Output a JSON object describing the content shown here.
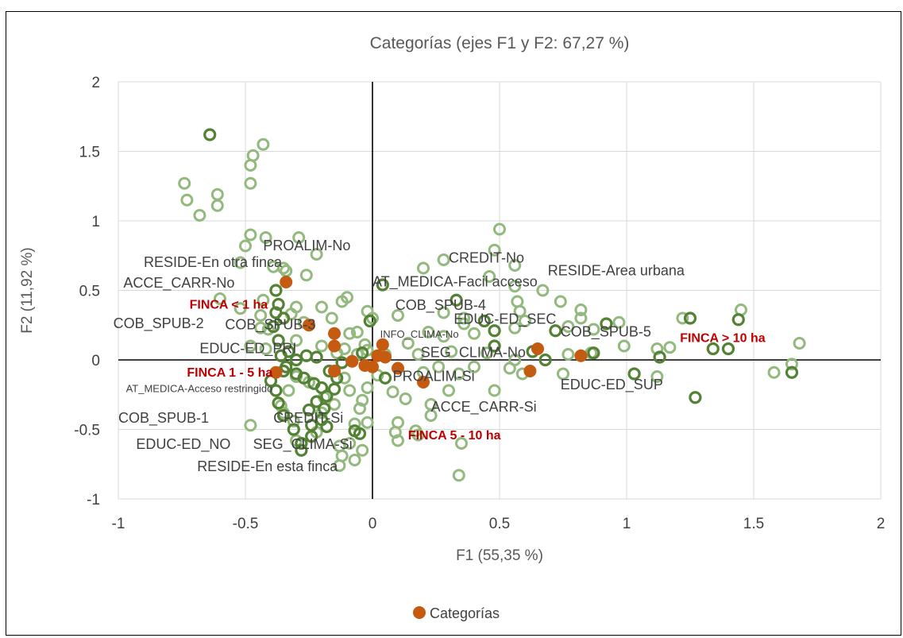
{
  "chart_data": {
    "type": "scatter",
    "title": "Categorías (ejes F1 y F2: 67,27 %)",
    "xlabel": "F1 (55,35 %)",
    "ylabel": "F2 (11,92 %)",
    "xlim": [
      -1,
      2
    ],
    "ylim": [
      -1,
      2
    ],
    "x_ticks": [
      "-1",
      "-0.5",
      "0",
      "0.5",
      "1",
      "1.5",
      "2"
    ],
    "y_ticks": [
      "-1",
      "-0.5",
      "0",
      "0.5",
      "1",
      "1.5",
      "2"
    ],
    "grid": true,
    "legend": {
      "position": "bottom",
      "entries": [
        "Categorías"
      ]
    },
    "colors": {
      "categories": "#c55a11",
      "obs_light": "#93b97f",
      "obs_dark": "#548235",
      "grid": "#d9d9d9",
      "highlight_label": "#c00000"
    },
    "series": [
      {
        "name": "Categorías",
        "points": [
          {
            "x": -0.34,
            "y": 0.56
          },
          {
            "x": -0.25,
            "y": 0.25
          },
          {
            "x": -0.15,
            "y": 0.19
          },
          {
            "x": -0.15,
            "y": 0.1
          },
          {
            "x": -0.08,
            "y": -0.01
          },
          {
            "x": -0.03,
            "y": -0.04
          },
          {
            "x": 0.0,
            "y": -0.05
          },
          {
            "x": 0.02,
            "y": 0.03
          },
          {
            "x": 0.04,
            "y": 0.11
          },
          {
            "x": 0.1,
            "y": -0.06
          },
          {
            "x": 0.2,
            "y": -0.16
          },
          {
            "x": 0.62,
            "y": -0.08
          },
          {
            "x": 0.65,
            "y": 0.08
          },
          {
            "x": 0.82,
            "y": 0.03
          },
          {
            "x": -0.38,
            "y": -0.09
          },
          {
            "x": -0.15,
            "y": -0.08
          },
          {
            "x": 0.05,
            "y": 0.02
          }
        ]
      },
      {
        "name": "",
        "style": "light",
        "points": [
          {
            "x": -0.74,
            "y": 1.27
          },
          {
            "x": -0.73,
            "y": 1.15
          },
          {
            "x": -0.68,
            "y": 1.04
          },
          {
            "x": -0.61,
            "y": 1.19
          },
          {
            "x": -0.61,
            "y": 1.11
          },
          {
            "x": -0.48,
            "y": 1.4
          },
          {
            "x": -0.47,
            "y": 1.47
          },
          {
            "x": -0.43,
            "y": 1.55
          },
          {
            "x": -0.48,
            "y": 1.27
          },
          {
            "x": -0.5,
            "y": 0.82
          },
          {
            "x": -0.48,
            "y": 0.9
          },
          {
            "x": -0.42,
            "y": 0.88
          },
          {
            "x": -0.29,
            "y": 0.88
          },
          {
            "x": -0.22,
            "y": 0.76
          },
          {
            "x": -0.52,
            "y": 0.7
          },
          {
            "x": -0.39,
            "y": 0.67
          },
          {
            "x": -0.35,
            "y": 0.66
          },
          {
            "x": -0.34,
            "y": 0.64
          },
          {
            "x": -0.26,
            "y": 0.61
          },
          {
            "x": -0.6,
            "y": 0.44
          },
          {
            "x": -0.52,
            "y": 0.37
          },
          {
            "x": -0.43,
            "y": 0.43
          },
          {
            "x": -0.3,
            "y": 0.38
          },
          {
            "x": -0.12,
            "y": 0.42
          },
          {
            "x": -0.1,
            "y": 0.45
          },
          {
            "x": -0.2,
            "y": 0.38
          },
          {
            "x": -0.44,
            "y": 0.32
          },
          {
            "x": -0.44,
            "y": 0.23
          },
          {
            "x": -0.41,
            "y": 0.22
          },
          {
            "x": -0.32,
            "y": 0.33
          },
          {
            "x": -0.27,
            "y": 0.27
          },
          {
            "x": -0.16,
            "y": 0.3
          },
          {
            "x": -0.09,
            "y": 0.19
          },
          {
            "x": -0.06,
            "y": 0.2
          },
          {
            "x": -0.03,
            "y": 0.11
          },
          {
            "x": -0.02,
            "y": 0.35
          },
          {
            "x": 0.0,
            "y": 0.3
          },
          {
            "x": -0.48,
            "y": 0.1
          },
          {
            "x": -0.42,
            "y": 0.08
          },
          {
            "x": -0.3,
            "y": 0.14
          },
          {
            "x": -0.2,
            "y": 0.1
          },
          {
            "x": -0.14,
            "y": 0.05
          },
          {
            "x": -0.11,
            "y": 0.08
          },
          {
            "x": -0.06,
            "y": 0.04
          },
          {
            "x": -0.02,
            "y": 0.07
          },
          {
            "x": 0.05,
            "y": 0.04
          },
          {
            "x": 0.14,
            "y": 0.12
          },
          {
            "x": 0.18,
            "y": 0.04
          },
          {
            "x": 0.22,
            "y": 0.2
          },
          {
            "x": 0.28,
            "y": 0.17
          },
          {
            "x": 0.36,
            "y": 0.26
          },
          {
            "x": 0.4,
            "y": 0.19
          },
          {
            "x": 0.1,
            "y": 0.32
          },
          {
            "x": 0.2,
            "y": 0.66
          },
          {
            "x": 0.28,
            "y": 0.72
          },
          {
            "x": 0.48,
            "y": 0.79
          },
          {
            "x": 0.5,
            "y": 0.94
          },
          {
            "x": 0.56,
            "y": 0.68
          },
          {
            "x": 0.46,
            "y": 0.6
          },
          {
            "x": 0.56,
            "y": 0.53
          },
          {
            "x": 0.57,
            "y": 0.42
          },
          {
            "x": 0.58,
            "y": 0.35
          },
          {
            "x": 0.67,
            "y": 0.5
          },
          {
            "x": 0.56,
            "y": 0.23
          },
          {
            "x": 0.6,
            "y": 0.28
          },
          {
            "x": 0.74,
            "y": 0.42
          },
          {
            "x": 0.82,
            "y": 0.36
          },
          {
            "x": 0.82,
            "y": 0.3
          },
          {
            "x": 0.77,
            "y": 0.24
          },
          {
            "x": 0.87,
            "y": 0.22
          },
          {
            "x": 0.97,
            "y": 0.27
          },
          {
            "x": 0.99,
            "y": 0.1
          },
          {
            "x": 0.86,
            "y": 0.05
          },
          {
            "x": 0.77,
            "y": 0.04
          },
          {
            "x": 0.75,
            "y": -0.1
          },
          {
            "x": 0.59,
            "y": -0.1
          },
          {
            "x": 0.56,
            "y": 0.0
          },
          {
            "x": 0.45,
            "y": 0.05
          },
          {
            "x": 0.4,
            "y": -0.05
          },
          {
            "x": 0.34,
            "y": -0.1
          },
          {
            "x": 0.26,
            "y": -0.05
          },
          {
            "x": 0.2,
            "y": -0.09
          },
          {
            "x": 0.3,
            "y": -0.22
          },
          {
            "x": 0.23,
            "y": -0.32
          },
          {
            "x": 0.23,
            "y": -0.4
          },
          {
            "x": 0.1,
            "y": -0.45
          },
          {
            "x": 0.09,
            "y": -0.52
          },
          {
            "x": 0.1,
            "y": -0.58
          },
          {
            "x": 0.17,
            "y": -0.51
          },
          {
            "x": 0.18,
            "y": -0.54
          },
          {
            "x": 0.35,
            "y": -0.6
          },
          {
            "x": 0.34,
            "y": -0.83
          },
          {
            "x": 0.08,
            "y": -0.23
          },
          {
            "x": 0.02,
            "y": -0.11
          },
          {
            "x": -0.02,
            "y": -0.2
          },
          {
            "x": -0.04,
            "y": -0.29
          },
          {
            "x": -0.02,
            "y": -0.45
          },
          {
            "x": -0.07,
            "y": -0.46
          },
          {
            "x": -0.09,
            "y": -0.6
          },
          {
            "x": -0.13,
            "y": -0.62
          },
          {
            "x": -0.12,
            "y": -0.69
          },
          {
            "x": -0.07,
            "y": -0.72
          },
          {
            "x": -0.04,
            "y": -0.65
          },
          {
            "x": -0.13,
            "y": -0.76
          },
          {
            "x": -0.22,
            "y": -0.52
          },
          {
            "x": -0.24,
            "y": -0.55
          },
          {
            "x": -0.3,
            "y": -0.58
          },
          {
            "x": -0.31,
            "y": -0.44
          },
          {
            "x": -0.35,
            "y": -0.38
          },
          {
            "x": -0.36,
            "y": -0.33
          },
          {
            "x": -0.48,
            "y": -0.47
          },
          {
            "x": -0.33,
            "y": -0.22
          },
          {
            "x": -0.3,
            "y": -0.12
          },
          {
            "x": -0.25,
            "y": -0.16
          },
          {
            "x": -0.19,
            "y": -0.27
          },
          {
            "x": -0.15,
            "y": -0.32
          },
          {
            "x": -0.11,
            "y": -0.13
          },
          {
            "x": -0.09,
            "y": -0.22
          },
          {
            "x": -0.05,
            "y": -0.35
          },
          {
            "x": -0.2,
            "y": -0.38
          },
          {
            "x": 1.12,
            "y": 0.08
          },
          {
            "x": 1.17,
            "y": 0.09
          },
          {
            "x": 1.22,
            "y": 0.3
          },
          {
            "x": 1.45,
            "y": 0.36
          },
          {
            "x": 1.58,
            "y": -0.09
          },
          {
            "x": 1.65,
            "y": -0.03
          },
          {
            "x": 1.68,
            "y": 0.12
          },
          {
            "x": 1.12,
            "y": -0.12
          },
          {
            "x": 0.48,
            "y": -0.22
          },
          {
            "x": 0.54,
            "y": -0.06
          },
          {
            "x": 0.31,
            "y": 0.06
          },
          {
            "x": 0.28,
            "y": 0.34
          },
          {
            "x": 0.36,
            "y": 0.3
          },
          {
            "x": 0.13,
            "y": -0.28
          }
        ]
      },
      {
        "name": "",
        "style": "dark",
        "points": [
          {
            "x": -0.64,
            "y": 1.62
          },
          {
            "x": -0.38,
            "y": 0.5
          },
          {
            "x": -0.37,
            "y": 0.4
          },
          {
            "x": -0.38,
            "y": 0.34
          },
          {
            "x": -0.35,
            "y": 0.3
          },
          {
            "x": -0.39,
            "y": 0.24
          },
          {
            "x": -0.37,
            "y": 0.14
          },
          {
            "x": -0.33,
            "y": 0.06
          },
          {
            "x": -0.36,
            "y": 0.03
          },
          {
            "x": -0.3,
            "y": 0.0
          },
          {
            "x": -0.26,
            "y": 0.03
          },
          {
            "x": -0.22,
            "y": 0.02
          },
          {
            "x": -0.34,
            "y": -0.05
          },
          {
            "x": -0.3,
            "y": -0.1
          },
          {
            "x": -0.27,
            "y": -0.13
          },
          {
            "x": -0.23,
            "y": -0.17
          },
          {
            "x": -0.2,
            "y": -0.2
          },
          {
            "x": -0.18,
            "y": -0.26
          },
          {
            "x": -0.15,
            "y": -0.21
          },
          {
            "x": -0.22,
            "y": -0.3
          },
          {
            "x": -0.19,
            "y": -0.35
          },
          {
            "x": -0.2,
            "y": -0.43
          },
          {
            "x": -0.18,
            "y": -0.48
          },
          {
            "x": -0.24,
            "y": -0.47
          },
          {
            "x": -0.25,
            "y": -0.36
          },
          {
            "x": -0.31,
            "y": -0.5
          },
          {
            "x": -0.28,
            "y": -0.6
          },
          {
            "x": -0.28,
            "y": -0.65
          },
          {
            "x": -0.37,
            "y": -0.31
          },
          {
            "x": -0.38,
            "y": -0.22
          },
          {
            "x": -0.4,
            "y": -0.15
          },
          {
            "x": -0.35,
            "y": -0.08
          },
          {
            "x": -0.17,
            "y": -0.08
          },
          {
            "x": -0.12,
            "y": -0.02
          },
          {
            "x": -0.04,
            "y": 0.05
          },
          {
            "x": -0.01,
            "y": 0.28
          },
          {
            "x": 0.04,
            "y": 0.54
          },
          {
            "x": 0.05,
            "y": -0.13
          },
          {
            "x": 0.33,
            "y": 0.43
          },
          {
            "x": 0.44,
            "y": 0.28
          },
          {
            "x": 0.48,
            "y": 0.21
          },
          {
            "x": 0.48,
            "y": 0.1
          },
          {
            "x": 0.63,
            "y": 0.06
          },
          {
            "x": 0.68,
            "y": 0.0
          },
          {
            "x": 0.72,
            "y": 0.21
          },
          {
            "x": 0.92,
            "y": 0.26
          },
          {
            "x": 0.87,
            "y": 0.05
          },
          {
            "x": 1.03,
            "y": -0.1
          },
          {
            "x": 1.13,
            "y": 0.02
          },
          {
            "x": 1.25,
            "y": 0.3
          },
          {
            "x": 1.27,
            "y": -0.27
          },
          {
            "x": 1.34,
            "y": 0.08
          },
          {
            "x": 1.4,
            "y": 0.08
          },
          {
            "x": 1.44,
            "y": 0.29
          },
          {
            "x": 1.65,
            "y": -0.09
          },
          {
            "x": -0.07,
            "y": -0.51
          },
          {
            "x": -0.05,
            "y": -0.53
          },
          {
            "x": -0.35,
            "y": -0.4
          },
          {
            "x": -0.24,
            "y": -0.55
          },
          {
            "x": -0.14,
            "y": -0.13
          }
        ]
      }
    ],
    "point_labels": [
      {
        "text": "PROALIM-No",
        "x": -0.43,
        "y": 0.79,
        "size": "normal"
      },
      {
        "text": "RESIDE-En otra finca",
        "x": -0.9,
        "y": 0.67,
        "size": "normal"
      },
      {
        "text": "ACCE_CARR-No",
        "x": -0.98,
        "y": 0.52,
        "size": "normal"
      },
      {
        "text": "COB_SPUB-2",
        "x": -1.02,
        "y": 0.23,
        "size": "normal"
      },
      {
        "text": "COB_SPUB-3",
        "x": -0.58,
        "y": 0.22,
        "size": "normal"
      },
      {
        "text": "EDUC-ED_PRI",
        "x": -0.68,
        "y": 0.05,
        "size": "normal"
      },
      {
        "text": "AT_MEDICA-Acceso restringido",
        "x": -0.97,
        "y": -0.23,
        "size": "small"
      },
      {
        "text": "COB_SPUB-1",
        "x": -1.0,
        "y": -0.45,
        "size": "normal"
      },
      {
        "text": "CREDIT-Si",
        "x": -0.39,
        "y": -0.45,
        "size": "normal"
      },
      {
        "text": "EDUC-ED_NO",
        "x": -0.93,
        "y": -0.64,
        "size": "normal"
      },
      {
        "text": "SEG_CLIMA-Si",
        "x": -0.47,
        "y": -0.64,
        "size": "normal"
      },
      {
        "text": "RESIDE-En esta finca",
        "x": -0.69,
        "y": -0.8,
        "size": "normal"
      },
      {
        "text": "CREDIT-No",
        "x": 0.3,
        "y": 0.7,
        "size": "normal"
      },
      {
        "text": "RESIDE-Area urbana",
        "x": 0.69,
        "y": 0.61,
        "size": "normal"
      },
      {
        "text": "AT_MEDICA-Facil acceso",
        "x": 0.0,
        "y": 0.53,
        "size": "normal"
      },
      {
        "text": "COB_SPUB-4",
        "x": 0.09,
        "y": 0.36,
        "size": "normal"
      },
      {
        "text": "EDUC-ED_SEC",
        "x": 0.32,
        "y": 0.26,
        "size": "normal"
      },
      {
        "text": "COB_SPUB-5",
        "x": 0.74,
        "y": 0.17,
        "size": "normal"
      },
      {
        "text": "INFO_CLIMA-No",
        "x": 0.03,
        "y": 0.16,
        "size": "small"
      },
      {
        "text": "SEG_CLIMA-No",
        "x": 0.19,
        "y": 0.02,
        "size": "normal"
      },
      {
        "text": "PROALIM-Si",
        "x": 0.08,
        "y": -0.15,
        "size": "normal"
      },
      {
        "text": "EDUC-ED_SUP",
        "x": 0.74,
        "y": -0.21,
        "size": "normal"
      },
      {
        "text": "ACCE_CARR-Si",
        "x": 0.23,
        "y": -0.37,
        "size": "normal"
      }
    ],
    "category_labels": [
      {
        "text": "FINCA < 1 ha",
        "x": -0.72,
        "y": 0.37
      },
      {
        "text": "FINCA 1 - 5 ha",
        "x": -0.73,
        "y": -0.12
      },
      {
        "text": "FINCA 5 - 10 ha",
        "x": 0.14,
        "y": -0.57
      },
      {
        "text": "FINCA > 10 ha",
        "x": 1.21,
        "y": 0.13
      }
    ]
  }
}
